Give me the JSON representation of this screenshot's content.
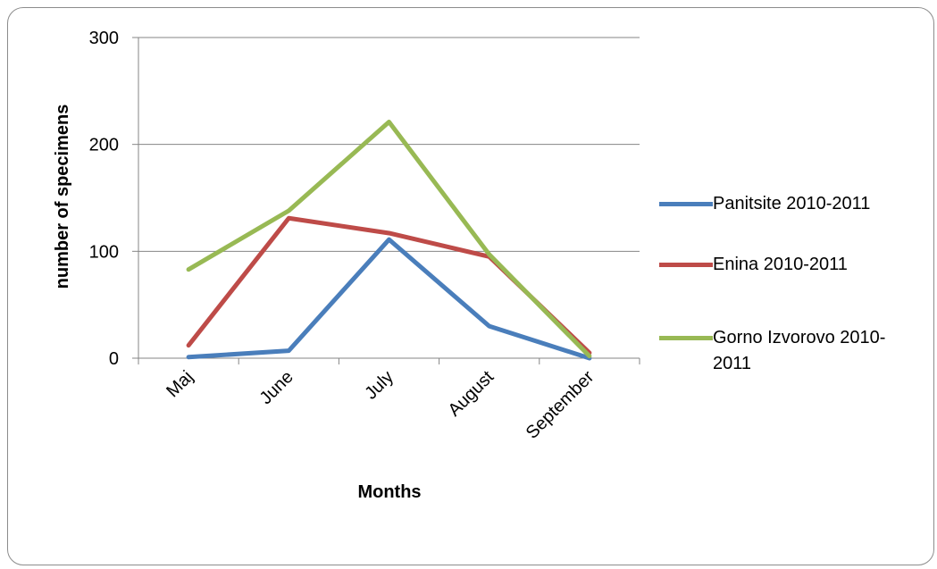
{
  "chart_data": {
    "type": "line",
    "categories": [
      "Maj",
      "June",
      "July",
      "August",
      "September"
    ],
    "series": [
      {
        "name": "Panitsite 2010-2011",
        "color": "#4a7ebb",
        "values": [
          1,
          7,
          111,
          30,
          0
        ]
      },
      {
        "name": "Enina 2010-2011",
        "color": "#be4b48",
        "values": [
          12,
          131,
          117,
          95,
          5
        ]
      },
      {
        "name": "Gorno Izvorovo 2010-2011",
        "color": "#98b954",
        "values": [
          83,
          138,
          221,
          97,
          2
        ]
      }
    ],
    "xlabel": "Months",
    "ylabel": "number of specimens",
    "ylim": [
      0,
      300
    ],
    "yticks": [
      "0",
      "100",
      "200",
      "300"
    ],
    "grid": true,
    "legend_position": "right"
  }
}
